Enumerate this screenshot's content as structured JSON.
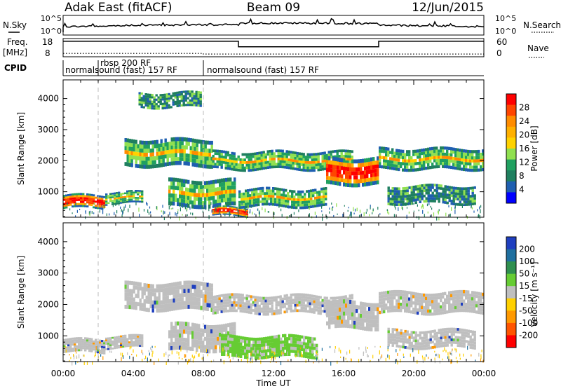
{
  "header": {
    "station": "Adak East (fitACF)",
    "beam": "Beam 09",
    "date": "12/Jun/2015"
  },
  "status_panel": {
    "nsky_label": "N.Sky",
    "nsearch_label": "N.Search",
    "power_ticks": [
      "10^5",
      "10^0"
    ],
    "freq_label_1": "Freq.",
    "freq_label_2": "[MHz]",
    "freq_ticks": [
      "18",
      "8"
    ],
    "nave_label": "Nave",
    "nave_ticks": [
      "60",
      "0"
    ],
    "cpid_label": "CPID",
    "programs": [
      {
        "name": "normalsound (fast) 157 RF",
        "start_hour": 0
      },
      {
        "name": "rbsp 200 RF",
        "start_hour": 2
      },
      {
        "name": "normalsound (fast) 157 RF",
        "start_hour": 8
      }
    ],
    "program_switch_hours": [
      2,
      8
    ],
    "freq_mhz_segments": [
      {
        "start": 0,
        "end": 10,
        "value": 16.5
      },
      {
        "start": 10,
        "end": 18,
        "value": 13.5
      },
      {
        "start": 18,
        "end": 24,
        "value": 16.5
      }
    ],
    "nave_segments": [
      {
        "start": 0,
        "end": 8,
        "value": 11
      },
      {
        "start": 8,
        "end": 24,
        "value": 9
      }
    ]
  },
  "chart_data": [
    {
      "type": "heatmap",
      "name": "power",
      "xlabel": "Time UT",
      "ylabel": "Slant Range [km]",
      "xlim": [
        0,
        24
      ],
      "ylim": [
        180,
        4600
      ],
      "x_ticks": [
        "00:00",
        "04:00",
        "08:00",
        "12:00",
        "16:00",
        "20:00",
        "00:00"
      ],
      "x_tick_hours": [
        0,
        4,
        8,
        12,
        16,
        20,
        24
      ],
      "y_ticks": [
        1000,
        2000,
        3000,
        4000
      ],
      "colorbar": {
        "label": "Power [dB]",
        "ticks": [
          "28",
          "24",
          "20",
          "16",
          "12",
          "8",
          "4"
        ],
        "colors": [
          "#ff0000",
          "#ff4500",
          "#ff8c00",
          "#ffb000",
          "#ffd200",
          "#90e050",
          "#20a060",
          "#1f7f5f",
          "#1f5fb0",
          "#0000ff"
        ]
      },
      "bands": [
        {
          "start": 0,
          "end": 2.4,
          "range_lo": 450,
          "range_hi": 900,
          "power": "high"
        },
        {
          "start": 2.4,
          "end": 4.5,
          "range_lo": 600,
          "range_hi": 1000,
          "power": "medium"
        },
        {
          "start": 4.3,
          "end": 7.8,
          "range_lo": 3700,
          "range_hi": 4200,
          "power": "low"
        },
        {
          "start": 3.5,
          "end": 8.5,
          "range_lo": 1800,
          "range_hi": 2700,
          "power": "medium"
        },
        {
          "start": 6.0,
          "end": 9.8,
          "range_lo": 500,
          "range_hi": 1400,
          "power": "medium"
        },
        {
          "start": 8.5,
          "end": 10.5,
          "range_lo": 200,
          "range_hi": 500,
          "power": "high"
        },
        {
          "start": 8.5,
          "end": 16.5,
          "range_lo": 1700,
          "range_hi": 2300,
          "power": "medium"
        },
        {
          "start": 10.0,
          "end": 15.0,
          "range_lo": 500,
          "range_hi": 1100,
          "power": "medium"
        },
        {
          "start": 15.0,
          "end": 18.0,
          "range_lo": 1200,
          "range_hi": 2100,
          "power": "high"
        },
        {
          "start": 18.0,
          "end": 24.0,
          "range_lo": 1700,
          "range_hi": 2400,
          "power": "medium"
        },
        {
          "start": 18.5,
          "end": 23.5,
          "range_lo": 600,
          "range_hi": 1200,
          "power": "low"
        }
      ]
    },
    {
      "type": "heatmap",
      "name": "velocity",
      "xlabel": "Time UT",
      "ylabel": "Slant Range [km]",
      "xlim": [
        0,
        24
      ],
      "ylim": [
        180,
        4600
      ],
      "x_ticks": [
        "00:00",
        "04:00",
        "08:00",
        "12:00",
        "16:00",
        "20:00",
        "00:00"
      ],
      "x_tick_hours": [
        0,
        4,
        8,
        12,
        16,
        20,
        24
      ],
      "y_ticks": [
        1000,
        2000,
        3000,
        4000
      ],
      "colorbar": {
        "label": "Velocity [m s⁻¹]",
        "ticks": [
          "200",
          "100",
          "50",
          "15",
          "-15",
          "-50",
          "-100",
          "-200"
        ],
        "colors": [
          "#1f3fbf",
          "#1f6f9f",
          "#2f8f4f",
          "#66cc33",
          "#bfbfbf",
          "#ffd000",
          "#ff9900",
          "#ff5500",
          "#ff0000"
        ]
      },
      "bands": [
        {
          "start": 0,
          "end": 2.4,
          "range_lo": 450,
          "range_hi": 900,
          "velocity": "near zero"
        },
        {
          "start": 2.4,
          "end": 4.5,
          "range_lo": 600,
          "range_hi": 1000,
          "velocity": "near zero"
        },
        {
          "start": 3.5,
          "end": 8.5,
          "range_lo": 1800,
          "range_hi": 2700,
          "velocity": "near zero"
        },
        {
          "start": 6.0,
          "end": 9.8,
          "range_lo": 500,
          "range_hi": 1400,
          "velocity": "near zero"
        },
        {
          "start": 8.5,
          "end": 16.5,
          "range_lo": 1700,
          "range_hi": 2300,
          "velocity": "near zero"
        },
        {
          "start": 9.0,
          "end": 14.5,
          "range_lo": 300,
          "range_hi": 1000,
          "velocity": "positive"
        },
        {
          "start": 15.0,
          "end": 18.0,
          "range_lo": 1200,
          "range_hi": 2100,
          "velocity": "near zero"
        },
        {
          "start": 18.0,
          "end": 24.0,
          "range_lo": 1700,
          "range_hi": 2400,
          "velocity": "near zero"
        },
        {
          "start": 18.5,
          "end": 23.5,
          "range_lo": 600,
          "range_hi": 1200,
          "velocity": "near zero"
        }
      ]
    }
  ]
}
